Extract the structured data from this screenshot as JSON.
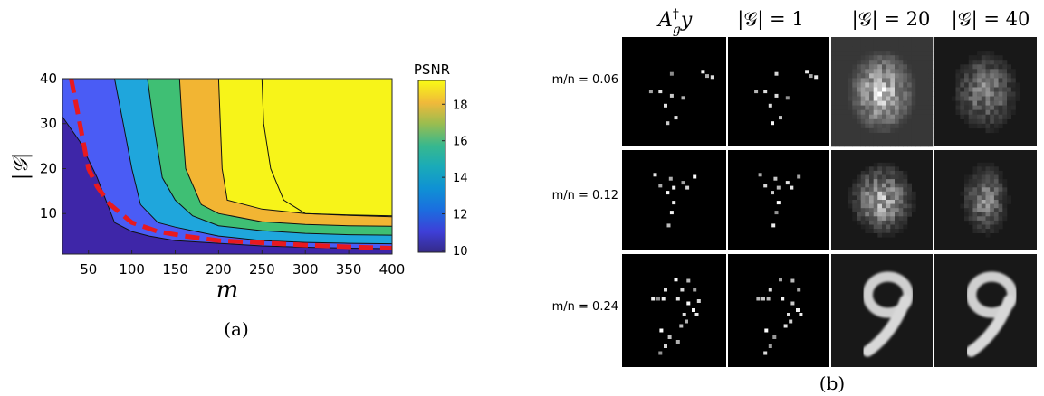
{
  "panel_a": {
    "caption": "(a)",
    "colorbar": {
      "title": "PSNR",
      "ticks": [
        10,
        12,
        14,
        16,
        18
      ],
      "range": [
        9.9,
        19.3
      ]
    },
    "chart_data": {
      "type": "contour",
      "xlabel": "m",
      "ylabel": "|𝒢|",
      "xlim": [
        20,
        400
      ],
      "ylim": [
        1,
        40
      ],
      "xticks": [
        50,
        100,
        150,
        200,
        250,
        300,
        350,
        400
      ],
      "yticks": [
        10,
        20,
        30,
        40
      ],
      "levels": [
        10,
        11.7,
        13.3,
        15,
        16.7,
        18.2
      ],
      "level_colors": [
        "#3e26a8",
        "#4a5cf5",
        "#1fa6dc",
        "#3fbf74",
        "#f2b533",
        "#f7f419"
      ],
      "boundaries": [
        [
          [
            20,
            31.5
          ],
          [
            40,
            26
          ],
          [
            50,
            22
          ],
          [
            60,
            18
          ],
          [
            70,
            13
          ],
          [
            80,
            8
          ],
          [
            100,
            6
          ],
          [
            120,
            5
          ],
          [
            150,
            4
          ],
          [
            200,
            3.4
          ],
          [
            250,
            2.8
          ],
          [
            300,
            2.5
          ],
          [
            350,
            2.3
          ],
          [
            400,
            2.2
          ]
        ],
        [
          [
            80,
            40
          ],
          [
            90,
            30
          ],
          [
            100,
            20
          ],
          [
            110,
            12
          ],
          [
            130,
            8
          ],
          [
            150,
            7
          ],
          [
            200,
            5
          ],
          [
            250,
            4
          ],
          [
            300,
            3.6
          ],
          [
            350,
            3.4
          ],
          [
            400,
            3.3
          ]
        ],
        [
          [
            118,
            40
          ],
          [
            125,
            30
          ],
          [
            135,
            18
          ],
          [
            150,
            13
          ],
          [
            170,
            9.5
          ],
          [
            200,
            7.3
          ],
          [
            250,
            6.2
          ],
          [
            300,
            5.6
          ],
          [
            350,
            5.3
          ],
          [
            400,
            5.2
          ]
        ],
        [
          [
            155,
            40
          ],
          [
            158,
            30
          ],
          [
            162,
            20
          ],
          [
            180,
            12
          ],
          [
            200,
            10
          ],
          [
            250,
            8.2
          ],
          [
            300,
            7.6
          ],
          [
            350,
            7.3
          ],
          [
            400,
            7.2
          ]
        ],
        [
          [
            200,
            40
          ],
          [
            202,
            30
          ],
          [
            204,
            20
          ],
          [
            210,
            13
          ],
          [
            250,
            11
          ],
          [
            300,
            10
          ],
          [
            350,
            9.6
          ],
          [
            400,
            9.3
          ]
        ],
        [
          [
            250,
            40
          ],
          [
            252,
            30
          ],
          [
            260,
            20
          ],
          [
            275,
            13
          ],
          [
            300,
            10
          ],
          [
            350,
            9.7
          ],
          [
            400,
            9.5
          ]
        ]
      ],
      "dashed_curve": {
        "color": "#e8191f",
        "points": [
          [
            30,
            40
          ],
          [
            35,
            35
          ],
          [
            40,
            30
          ],
          [
            45,
            25
          ],
          [
            50,
            20
          ],
          [
            60,
            16
          ],
          [
            75,
            12
          ],
          [
            100,
            8
          ],
          [
            130,
            6
          ],
          [
            160,
            5
          ],
          [
            200,
            4
          ],
          [
            250,
            3.5
          ],
          [
            300,
            3
          ],
          [
            350,
            2.6
          ],
          [
            400,
            2.3
          ]
        ]
      }
    }
  },
  "panel_b": {
    "caption": "(b)",
    "columns": [
      "A_g^† y",
      "|𝒢| = 1",
      "|𝒢| = 20",
      "|𝒢| = 40"
    ],
    "rows": [
      "m/n = 0.06",
      "m/n = 0.12",
      "m/n = 0.24"
    ],
    "column_label_parts": [
      {
        "main": "A",
        "sup": "†",
        "sub": "g",
        "tail": "y"
      },
      {
        "main": "|𝒢| = 1"
      },
      {
        "main": "|𝒢| = 20"
      },
      {
        "main": "|𝒢| = 40"
      }
    ]
  }
}
